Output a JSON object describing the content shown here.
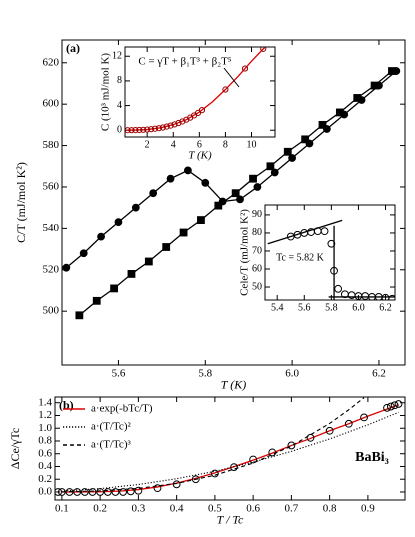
{
  "chart_data": [
    {
      "type": "line",
      "label": "(a)",
      "xlabel": "T (K)",
      "ylabel": "C/T (mJ/mol K²)",
      "xlim": [
        5.47,
        6.26
      ],
      "ylim": [
        474,
        631
      ],
      "xticks": [
        5.6,
        5.8,
        {
          "value": 6,
          "label": "6.0"
        },
        6.2
      ],
      "yticks": [
        500,
        520,
        540,
        560,
        580,
        600,
        620
      ],
      "series": [
        {
          "color": "#000000",
          "marker": "circle",
          "filled": true,
          "line": "solid",
          "x": [
            5.48,
            5.52,
            5.56,
            5.6,
            5.64,
            5.68,
            5.72,
            5.76,
            5.8,
            5.84,
            5.88,
            5.92,
            5.96,
            6.0,
            6.04,
            6.08,
            6.12,
            6.16,
            6.2,
            6.24
          ],
          "values": [
            521,
            528,
            536,
            543,
            550,
            557,
            564,
            568,
            562,
            553,
            554,
            560,
            567,
            574,
            581,
            588,
            595,
            602,
            609,
            616
          ]
        },
        {
          "color": "#000000",
          "marker": "square",
          "filled": true,
          "line": "solid",
          "x": [
            5.51,
            5.55,
            5.59,
            5.63,
            5.67,
            5.71,
            5.75,
            5.79,
            5.83,
            5.87,
            5.91,
            5.95,
            5.99,
            6.03,
            6.07,
            6.11,
            6.15,
            6.19,
            6.23
          ],
          "values": [
            498,
            505,
            511,
            518,
            524,
            531,
            538,
            544,
            551,
            557,
            564,
            570,
            577,
            583,
            590,
            596,
            603,
            609,
            616
          ]
        }
      ]
    },
    {
      "type": "line",
      "xlabel": "T (K)",
      "ylabel": "C (10³ mJ/mol K)",
      "annotation": "C = γT + β₁T³ + β₂T⁵",
      "xlim": [
        0.3,
        11.8
      ],
      "ylim": [
        -1.1,
        13.5
      ],
      "xticks": [
        2,
        4,
        6,
        8,
        10
      ],
      "yticks": [
        0,
        4,
        8,
        12
      ],
      "series": [
        {
          "color": "#dd0000",
          "line": "solid",
          "x": [
            0.3,
            1,
            2,
            3,
            4,
            5,
            6,
            7,
            8,
            9,
            10,
            11
          ],
          "values": [
            0,
            0.02,
            0.11,
            0.38,
            0.9,
            1.71,
            2.95,
            4.6,
            6.6,
            8.8,
            11.2,
            13.4
          ]
        },
        {
          "color": "#990000",
          "marker": "circle",
          "filled": false,
          "x": [
            0.5,
            0.8,
            1.1,
            1.4,
            1.7,
            2.0,
            2.3,
            2.6,
            2.9,
            3.2,
            3.5,
            3.8,
            4.1,
            4.4,
            4.7,
            5.0,
            5.3,
            5.6,
            5.9,
            6.2,
            8,
            9.5,
            10.9
          ],
          "values": [
            0.002,
            0.007,
            0.018,
            0.038,
            0.067,
            0.11,
            0.17,
            0.24,
            0.33,
            0.44,
            0.59,
            0.75,
            0.94,
            1.17,
            1.42,
            1.71,
            2.04,
            2.4,
            2.81,
            3.26,
            6.6,
            10.0,
            13.2
          ]
        }
      ]
    },
    {
      "type": "scatter",
      "ylabel": "Cele/T (mJ/mol K²)",
      "annotation": "Tc = 5.82 K",
      "xlim": [
        5.31,
        6.27
      ],
      "ylim": [
        42.8,
        95.5
      ],
      "xticks": [
        5.4,
        5.6,
        5.8,
        {
          "value": 6,
          "label": "6.0"
        },
        6.2
      ],
      "yticks": [
        50,
        60,
        70,
        80,
        90
      ],
      "series": [
        {
          "color": "#000000",
          "line": "solid",
          "x": [
            5.33,
            5.88
          ],
          "values": [
            74,
            87
          ]
        },
        {
          "color": "#000000",
          "line": "solid",
          "x": [
            5.82,
            5.82
          ],
          "values": [
            84,
            43
          ]
        },
        {
          "color": "#000000",
          "line": "solid",
          "x": [
            5.78,
            6.27
          ],
          "values": [
            44.5,
            44.5
          ]
        },
        {
          "color": "#000000",
          "marker": "circle",
          "filled": false,
          "x": [
            5.5,
            5.55,
            5.6,
            5.65,
            5.7,
            5.75,
            5.8,
            5.82,
            5.85,
            5.9,
            5.95,
            6.0,
            6.05,
            6.1,
            6.15,
            6.2,
            6.25
          ],
          "values": [
            78,
            79,
            80,
            80.5,
            81,
            81,
            74,
            59,
            49,
            46,
            45.5,
            45,
            45,
            44.5,
            44.5,
            44,
            43.5
          ]
        }
      ]
    },
    {
      "type": "line",
      "label": "(b)",
      "xlabel": "T / Tc",
      "ylabel": "ΔCe/γTc",
      "annotation": "BaBi₃",
      "legend": "upper left",
      "xlim": [
        0.082,
        0.997
      ],
      "ylim": [
        -0.126,
        1.49
      ],
      "xticks": [
        0.1,
        0.2,
        0.3,
        0.4,
        0.5,
        0.6,
        0.7,
        0.8,
        0.9
      ],
      "yticks": [
        {
          "value": 0,
          "label": "0.0"
        },
        0.2,
        0.4,
        0.6,
        0.8,
        {
          "value": 1,
          "label": "1.0"
        },
        1.2,
        1.4
      ],
      "series": [
        {
          "name": "a·exp(-bTc/T)",
          "color": "#dd0000",
          "line": "solid",
          "x": [
            0.1,
            0.15,
            0.2,
            0.25,
            0.3,
            0.35,
            0.4,
            0.45,
            0.5,
            0.55,
            0.6,
            0.65,
            0.7,
            0.75,
            0.8,
            0.85,
            0.9,
            0.95,
            0.98
          ],
          "values": [
            0,
            0.0002,
            0.003,
            0.013,
            0.038,
            0.079,
            0.138,
            0.213,
            0.3,
            0.397,
            0.5,
            0.61,
            0.73,
            0.84,
            0.96,
            1.07,
            1.19,
            1.3,
            1.37
          ]
        },
        {
          "name": "a·(T/Tc)²",
          "color": "#000000",
          "line": "dotted",
          "x": [
            0.09,
            0.2,
            0.3,
            0.4,
            0.5,
            0.6,
            0.7,
            0.8,
            0.9,
            0.98
          ],
          "values": [
            0.011,
            0.052,
            0.117,
            0.208,
            0.325,
            0.468,
            0.637,
            0.832,
            1.053,
            1.249
          ]
        },
        {
          "name": "a·(T/Tc)³",
          "color": "#000000",
          "line": "dashed",
          "x": [
            0.1,
            0.2,
            0.3,
            0.4,
            0.5,
            0.6,
            0.7,
            0.8,
            0.85,
            0.89
          ],
          "values": [
            0.002,
            0.017,
            0.057,
            0.134,
            0.263,
            0.454,
            0.72,
            1.075,
            1.29,
            1.48
          ]
        },
        {
          "color": "#000000",
          "marker": "circle",
          "filled": false,
          "x": [
            0.09,
            0.1,
            0.12,
            0.14,
            0.16,
            0.18,
            0.2,
            0.22,
            0.24,
            0.26,
            0.28,
            0.3,
            0.35,
            0.4,
            0.45,
            0.5,
            0.55,
            0.6,
            0.65,
            0.7,
            0.75,
            0.8,
            0.85,
            0.89,
            0.95,
            0.96,
            0.97,
            0.98
          ],
          "values": [
            0,
            0,
            0,
            0,
            0,
            0,
            0,
            0,
            0,
            0,
            0.01,
            0.02,
            0.06,
            0.12,
            0.2,
            0.29,
            0.39,
            0.51,
            0.62,
            0.73,
            0.85,
            0.96,
            1.07,
            1.17,
            1.32,
            1.34,
            1.36,
            1.38
          ]
        }
      ]
    }
  ]
}
